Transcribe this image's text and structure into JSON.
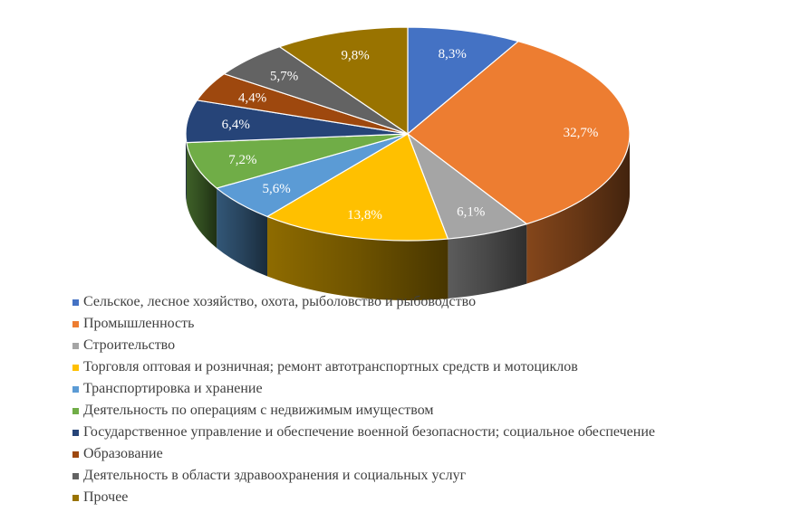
{
  "chart_data": {
    "type": "pie",
    "three_d": true,
    "legend_position": "bottom",
    "slices": [
      {
        "label": "Сельское, лесное хозяйство, охота, рыболовство и рыбоводство",
        "value": 8.3,
        "value_label": "8,3%",
        "color": "#4472C4"
      },
      {
        "label": "Промышленность",
        "value": 32.7,
        "value_label": "32,7%",
        "color": "#ED7D31"
      },
      {
        "label": "Строительство",
        "value": 6.1,
        "value_label": "6,1%",
        "color": "#A5A5A5"
      },
      {
        "label": "Торговля оптовая и розничная; ремонт автотранспортных средств и мотоциклов",
        "value": 13.8,
        "value_label": "13,8%",
        "color": "#FFC000"
      },
      {
        "label": "Транспортировка и хранение",
        "value": 5.6,
        "value_label": "5,6%",
        "color": "#5B9BD5"
      },
      {
        "label": "Деятельность по операциям с недвижимым имуществом",
        "value": 7.2,
        "value_label": "7,2%",
        "color": "#70AD47"
      },
      {
        "label": "Государственное управление и обеспечение военной безопасности; социальное обеспечение",
        "value": 6.4,
        "value_label": "6,4%",
        "color": "#264478"
      },
      {
        "label": "Образование",
        "value": 4.4,
        "value_label": "4,4%",
        "color": "#9E480E"
      },
      {
        "label": "Деятельность в области здравоохранения и социальных услуг",
        "value": 5.7,
        "value_label": "5,7%",
        "color": "#636363"
      },
      {
        "label": "Прочее",
        "value": 9.8,
        "value_label": "9,8%",
        "color": "#997300"
      }
    ]
  }
}
